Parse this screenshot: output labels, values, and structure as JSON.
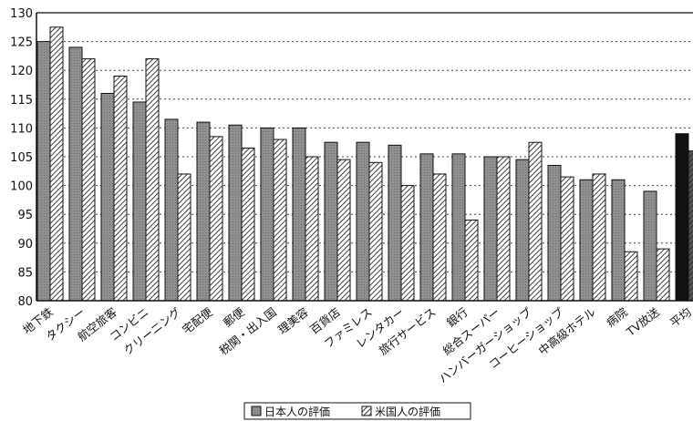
{
  "chart_data": {
    "type": "bar",
    "title": "",
    "xlabel": "",
    "ylabel": "",
    "ylim": [
      80,
      130
    ],
    "yticks": [
      80,
      85,
      90,
      95,
      100,
      105,
      110,
      115,
      120,
      125,
      130
    ],
    "grid": "horizontal dotted",
    "legend_position": "bottom",
    "categories": [
      "地下鉄",
      "タクシー",
      "航空旅客",
      "コンビニ",
      "クリーニング",
      "宅配便",
      "郵便",
      "税関・出入国",
      "理美容",
      "百貨店",
      "ファミレス",
      "レンタカー",
      "旅行サービス",
      "銀行",
      "総合スーパー",
      "ハンバーガーショップ",
      "コーヒーショップ",
      "中高級ホテル",
      "病院",
      "TV放送",
      "平均"
    ],
    "series": [
      {
        "name": "日本人の評価",
        "values": [
          125,
          124,
          116,
          114.5,
          111.5,
          111,
          110.5,
          110,
          110,
          107.5,
          107.5,
          107,
          105.5,
          105.5,
          105,
          104.5,
          103.5,
          101,
          101,
          99,
          109
        ]
      },
      {
        "name": "米国人の評価",
        "values": [
          127.5,
          122,
          119,
          122,
          102,
          108.5,
          106.5,
          108,
          105,
          104.5,
          104,
          100,
          102,
          94,
          105,
          107.5,
          101.5,
          102,
          88.5,
          89,
          106
        ]
      }
    ],
    "colors": {
      "japan": "#8c8c8c",
      "us": "#ffffff",
      "average_japan": "#111111",
      "average_us": "#555555"
    }
  }
}
